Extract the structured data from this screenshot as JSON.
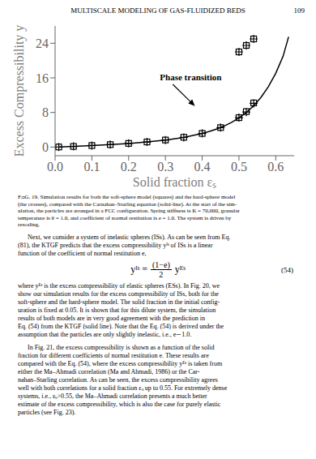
{
  "header": "MULTISCALE MODELING OF GAS-FLUIDIZED BEDS",
  "page_number": "109",
  "chart_data": {
    "type": "line",
    "xlabel": "Solid fraction εₛ",
    "ylabel": "Excess Compressibility y",
    "xlim": [
      0.0,
      0.65
    ],
    "ylim": [
      -2,
      28
    ],
    "xticks": [
      {
        "value": 0.0,
        "label": "0.0"
      },
      0.1,
      0.2,
      0.3,
      0.4,
      0.5,
      0.6
    ],
    "yticks": [
      0,
      8,
      16,
      24
    ],
    "series": [
      {
        "type": "line",
        "color": "#000000",
        "line_style": "solid",
        "x": [
          0.01,
          0.05,
          0.1,
          0.15,
          0.2,
          0.25,
          0.3,
          0.35,
          0.4,
          0.42,
          0.44,
          0.46,
          0.48,
          0.5,
          0.52,
          0.54,
          0.56,
          0.58,
          0.6,
          0.62,
          0.635
        ],
        "values": [
          0.03,
          0.16,
          0.35,
          0.57,
          0.83,
          1.17,
          1.62,
          2.24,
          3.14,
          3.62,
          4.19,
          4.88,
          5.72,
          6.74,
          7.99,
          9.55,
          11.5,
          13.96,
          17.06,
          21.0,
          25.5
        ]
      },
      {
        "type": "scatter",
        "marker": "square",
        "color": "#000000",
        "x": [
          0.01,
          0.05,
          0.1,
          0.15,
          0.2,
          0.25,
          0.3,
          0.35,
          0.4,
          0.45,
          0.5,
          0.52,
          0.54
        ],
        "values": [
          0.02,
          0.14,
          0.35,
          0.57,
          0.84,
          1.18,
          1.63,
          2.26,
          3.15,
          4.5,
          6.8,
          8.2,
          10.2
        ]
      },
      {
        "type": "scatter",
        "marker": "square",
        "color": "#000000",
        "x": [
          0.5,
          0.52,
          0.54
        ],
        "values": [
          22.0,
          23.5,
          25.0
        ]
      },
      {
        "type": "scatter",
        "marker": "plus",
        "color": "#000000",
        "x": [
          0.01,
          0.05,
          0.1,
          0.15,
          0.2,
          0.25,
          0.3,
          0.35,
          0.4,
          0.45,
          0.5,
          0.52,
          0.54
        ],
        "values": [
          0.02,
          0.15,
          0.36,
          0.58,
          0.84,
          1.17,
          1.61,
          2.24,
          3.14,
          4.5,
          6.8,
          8.1,
          10.1
        ]
      },
      {
        "type": "scatter",
        "marker": "plus",
        "color": "#000000",
        "x": [
          0.5,
          0.52,
          0.54
        ],
        "values": [
          22.0,
          23.5,
          25.0
        ]
      }
    ],
    "annotations": [
      {
        "text": "Phase transition",
        "x": 0.285,
        "y": 15.5,
        "arrow_from": [
          0.32,
          14.5
        ],
        "arrow_to": [
          0.38,
          9.5
        ]
      }
    ]
  },
  "caption": "FᴞG. 19. Simulation results for both the soft-sphere model (squares) and the hard-sphere model\n(the crosses), compared with the Carnahan–Starling equation (solid-line). At the start of the sim-\nulation, the particles are arranged in a FCC configuration. Spring stiffness is K = 70,000, granular\ntemperature is θ = 1.0, and coefficient of normal restitution is e = 1.0. The system is driven by\nrescaling.",
  "body_text_1": "Next, we consider a system of inelastic spheres (ISs). As can be seen from Eq.\n(81), the KTGF predicts that the excess compressibility yᴵˢ of ISs is a linear\nfunction of the coefficient of normal restitution e,",
  "equation": {
    "left": "yᴵˢ =",
    "numerator": "(1−e)",
    "denominator": "2",
    "right": "yᴱˢ"
  },
  "equation_number": "(54)",
  "body_text_2": "where yᴱˢ is the excess compressibility of elastic spheres (ESs). In Fig. 20, we\nshow our simulation results for the excess compressibility of ISs, both for the\nsoft-sphere and the hard-sphere model. The solid fraction in the initial config-\nuration is fixed at 0.05. It is shown that for this dilute system, the simulation\nresults of both models are in very good agreement with the prediction in\nEq. (54) from the KTGF (solid line). Note that the Eq. (54) is derived under the\nassumption that the particles are only slightly inelastic, i.e., e∼1.0.",
  "body_text_3": "In Fig. 21, the excess compressibility is shown as a function of the solid\nfraction for different coefficients of normal restitution e. These results are\ncompared with the Eq. (54), where the excess compressibility yᴱˢ is taken from\neither the Ma–Ahmadi correlation (Ma and Ahmadi, 1986) or the Car-\nnahan–Starling correlation. As can be seen, the excess compressibility agrees\nwell with both correlations for a solid fraction εₛ up to 0.55. For extremely dense\nsystems, i.e., εₛ>0.55, the Ma–Ahmadi correlation presents a much better\nestimate of the excess compressibility, which is also the case for purely elastic\nparticles (see Fig. 23)."
}
